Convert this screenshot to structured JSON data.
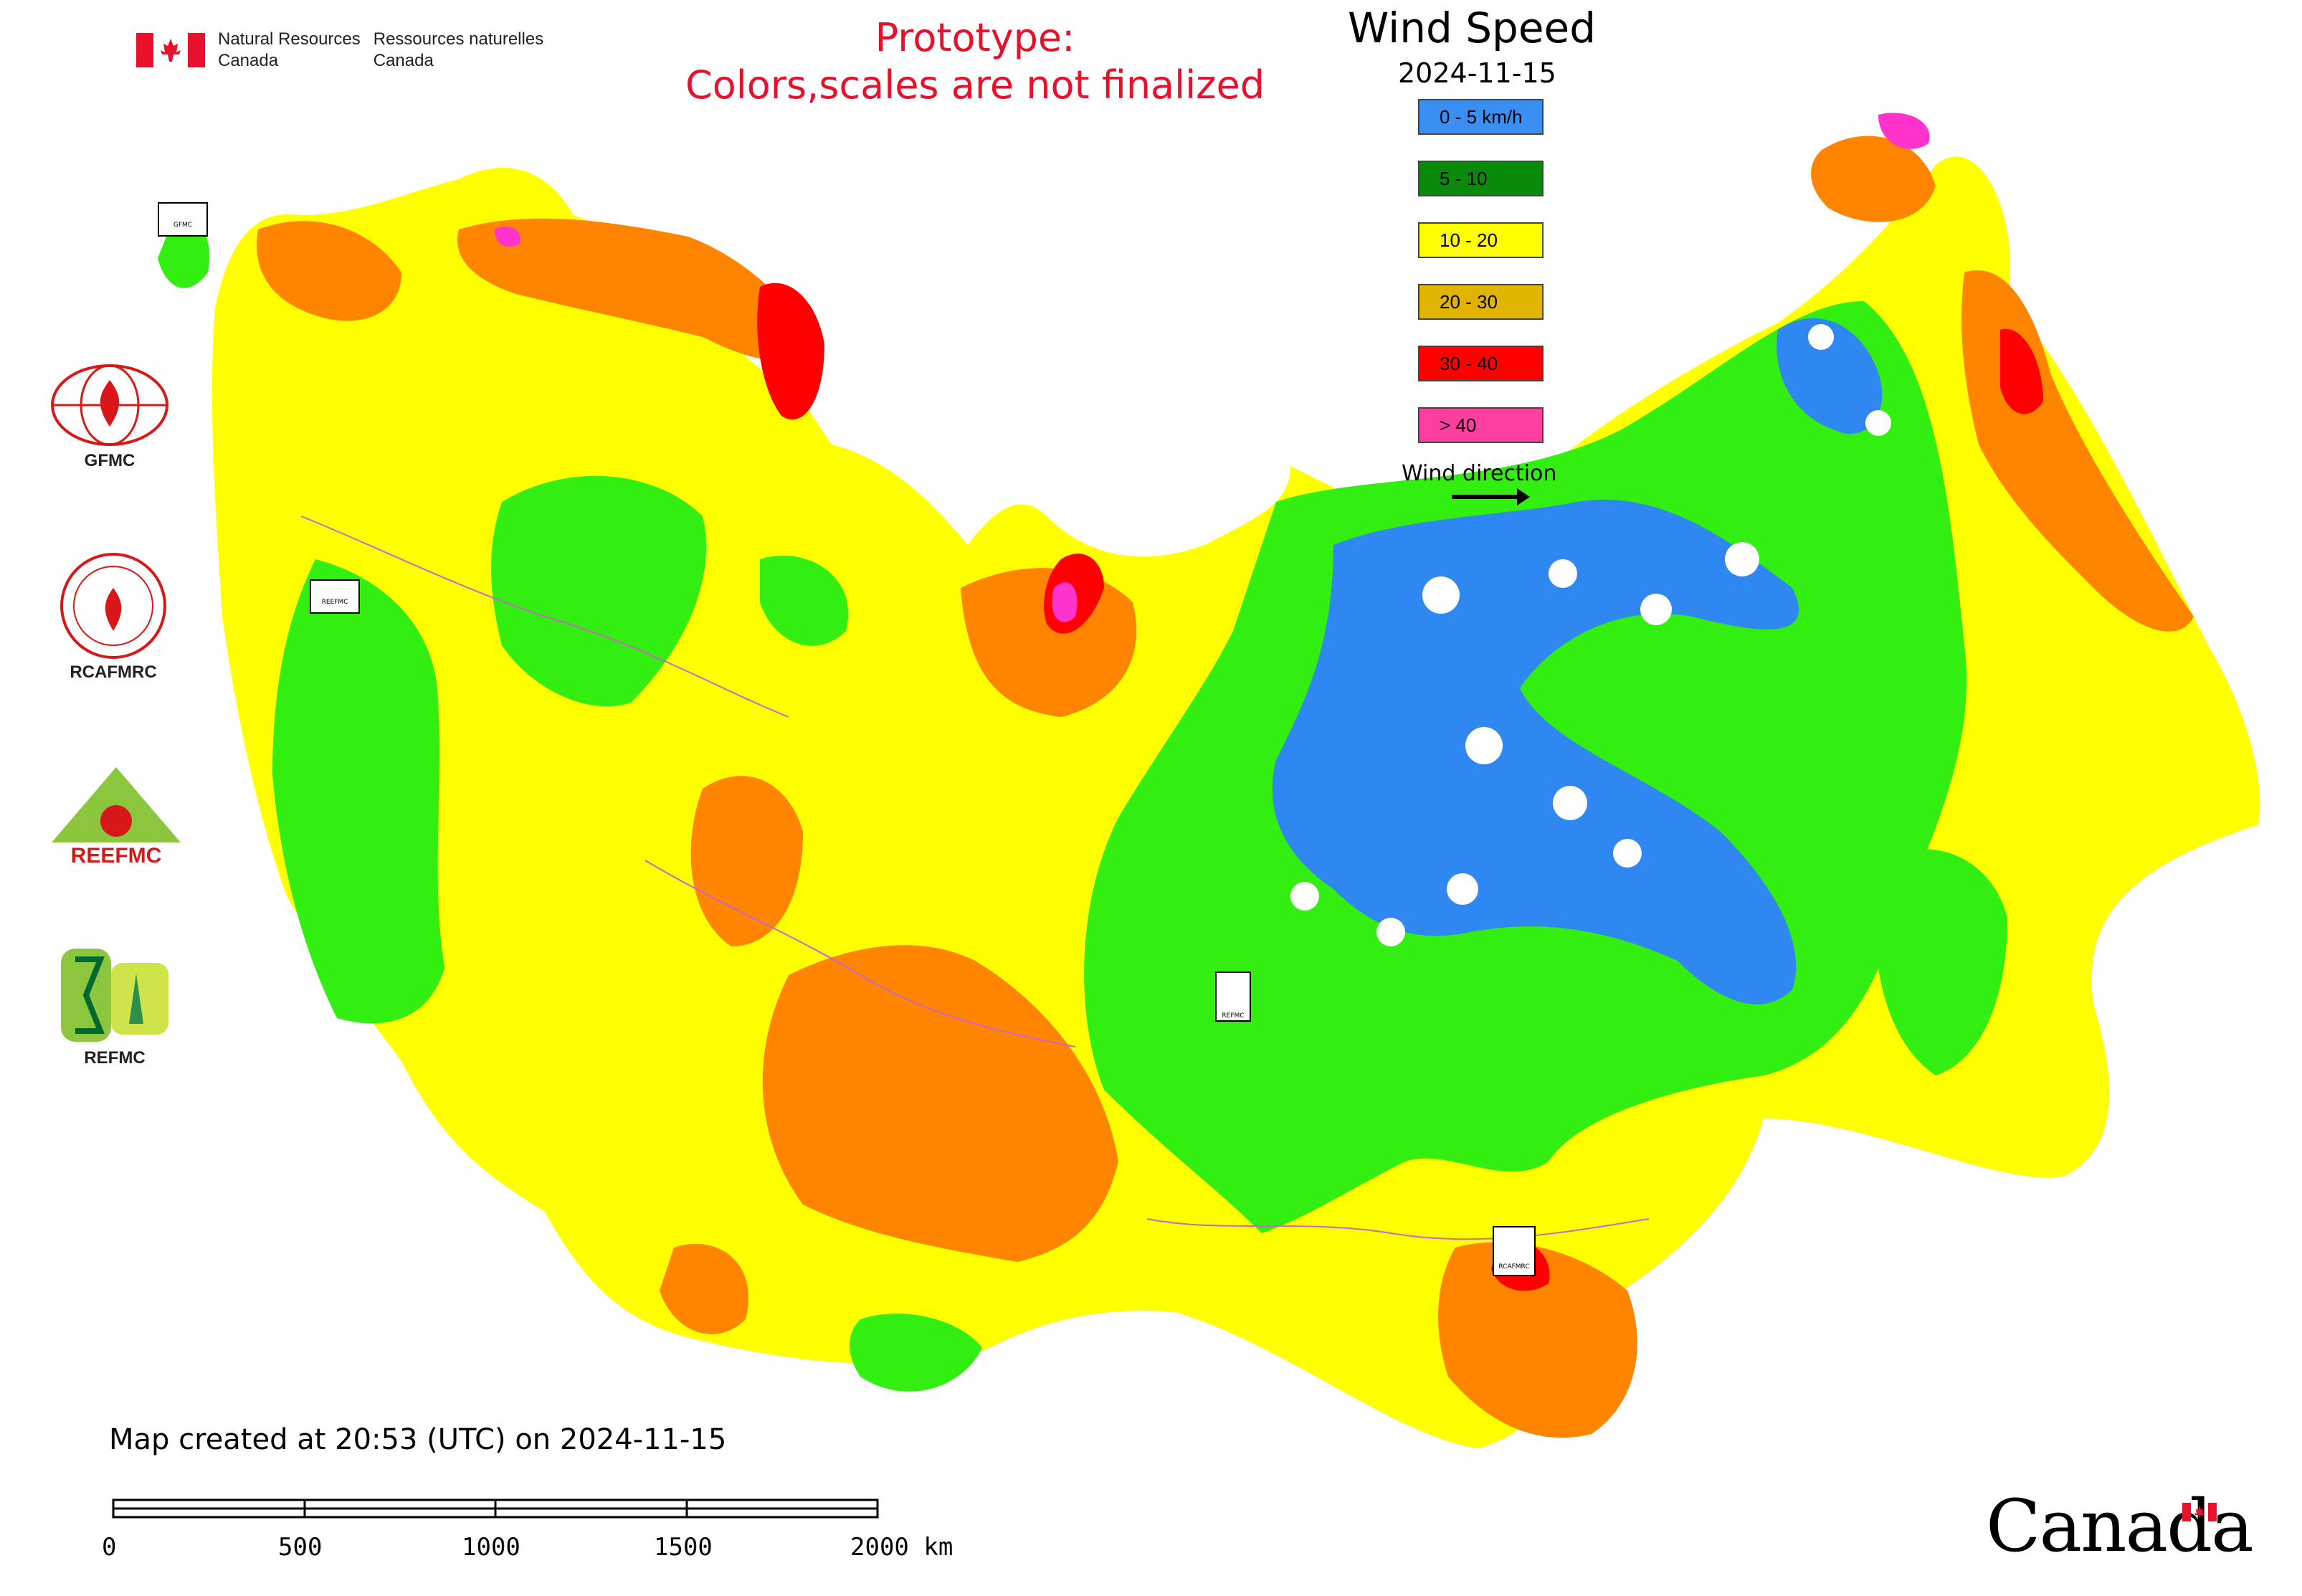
{
  "header": {
    "gov_en": [
      "Natural Resources",
      "Canada"
    ],
    "gov_fr": [
      "Ressources naturelles",
      "Canada"
    ],
    "prototype_line1": "Prototype:",
    "prototype_line2": "Colors,scales are not finalized"
  },
  "legend": {
    "title": "Wind Speed",
    "date": "2024-11-15",
    "items": [
      {
        "label": "0 - 5 km/h",
        "color": "#3a8ff2"
      },
      {
        "label": "5 - 10",
        "color": "#0a8a0a"
      },
      {
        "label": "10 - 20",
        "color": "#ffff00"
      },
      {
        "label": "20 - 30",
        "color": "#e0b400"
      },
      {
        "label": "30 - 40",
        "color": "#ff0000"
      },
      {
        "label": "> 40",
        "color": "#ff3fa0"
      }
    ],
    "wind_direction_label": "Wind direction"
  },
  "logos": {
    "gfmc": "GFMC",
    "rcafmrc": "RCAFMRC",
    "reefmc": "REEFMC",
    "refmc": "REFMC",
    "map_markers": [
      "GFMC",
      "REEFMC",
      "REFMC",
      "RCAFMRC"
    ]
  },
  "map_colors": {
    "blue": "#2f87f0",
    "green": "#33ee11",
    "yellow": "#ffff00",
    "orange": "#ff8400",
    "red": "#ff0000",
    "magenta": "#ff33cc"
  },
  "footer": {
    "map_created": "Map created at 20:53 (UTC) on 2024-11-15",
    "scale_labels": [
      "0",
      "500",
      "1000",
      "1500",
      "2000 km"
    ],
    "canada_wordmark": "Canada"
  }
}
